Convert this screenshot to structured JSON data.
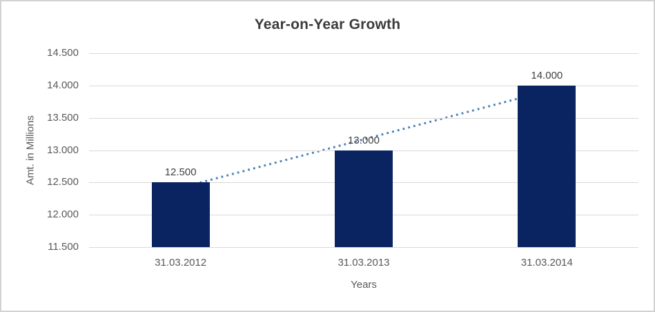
{
  "chart_data": {
    "type": "bar",
    "title": "Year-on-Year Growth",
    "xlabel": "Years",
    "ylabel": "Amt. in Millions",
    "categories": [
      "31.03.2012",
      "31.03.2013",
      "31.03.2014"
    ],
    "values": [
      12500,
      13000,
      14000
    ],
    "value_labels": [
      "12.500",
      "13.000",
      "14.000"
    ],
    "yticks": [
      {
        "value": 14500,
        "label": "14.500"
      },
      {
        "value": 14000,
        "label": "14.000"
      },
      {
        "value": 13500,
        "label": "13.500"
      },
      {
        "value": 13000,
        "label": "13.000"
      },
      {
        "value": 12500,
        "label": "12.500"
      },
      {
        "value": 12000,
        "label": "12.000"
      },
      {
        "value": 11500,
        "label": "11.500"
      }
    ],
    "ylim": [
      11500,
      14500
    ],
    "grid": true,
    "legend": "none",
    "bar_color": "#0a2461",
    "trendline": {
      "style": "dotted",
      "color": "#4a7ebb",
      "start_value": 12410,
      "end_value": 13915
    },
    "grid_color": "#d9d9d9",
    "axis_text_color": "#595959",
    "data_label_color": "#404040",
    "title_color": "#3b3b3b"
  }
}
